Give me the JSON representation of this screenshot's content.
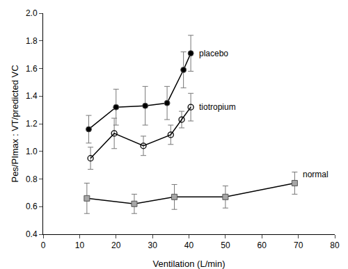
{
  "chart_data": {
    "type": "line",
    "x_label": "Ventilation (L/min)",
    "y_label": "Pes/PImax : VT/predicted VC",
    "xlim": [
      0,
      80
    ],
    "xticks": [
      0,
      10,
      20,
      30,
      40,
      50,
      60,
      70,
      80
    ],
    "ylim": [
      0.4,
      2.0
    ],
    "yticks": [
      0.4,
      0.6,
      0.8,
      {
        "value": 1.0,
        "label": "1.0"
      },
      1.2,
      1.4,
      1.6,
      1.8,
      {
        "value": 2.0,
        "label": "2.0"
      }
    ],
    "grid": false,
    "series": [
      {
        "name": "placebo",
        "color": "#000000",
        "marker": "circle",
        "line_style": "solid",
        "x": [
          12.5,
          20,
          28,
          34,
          38.5,
          40.5
        ],
        "values": [
          1.16,
          1.32,
          1.33,
          1.35,
          1.59,
          1.71
        ],
        "errors": [
          0.1,
          0.13,
          0.14,
          0.12,
          0.13,
          0.13
        ]
      },
      {
        "name": "tiotropium",
        "color": "#000000",
        "marker": "circle-open",
        "line_style": "solid",
        "x": [
          13,
          19.5,
          27.5,
          35,
          38,
          40.5
        ],
        "values": [
          0.95,
          1.13,
          1.04,
          1.12,
          1.23,
          1.32
        ],
        "errors": [
          0.08,
          0.11,
          0.07,
          0.07,
          0.06,
          0.1
        ]
      },
      {
        "name": "normal",
        "color": "#a6a6a6",
        "marker": "square",
        "line_style": "solid",
        "x": [
          12,
          25,
          36,
          50,
          69
        ],
        "values": [
          0.66,
          0.62,
          0.67,
          0.67,
          0.77
        ],
        "errors": [
          0.11,
          0.07,
          0.09,
          0.08,
          0.08
        ]
      }
    ]
  }
}
